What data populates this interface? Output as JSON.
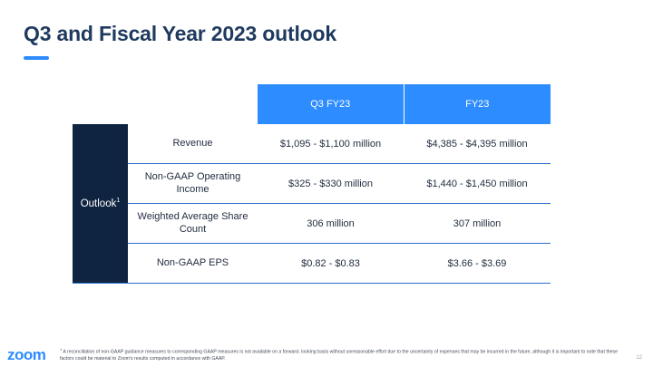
{
  "title": "Q3 and Fiscal Year 2023 outlook",
  "table": {
    "columns": [
      "Q3 FY23",
      "FY23"
    ],
    "side_label": "Outlook",
    "side_label_sup": "1",
    "rows": [
      {
        "metric": "Revenue",
        "q3": "$1,095 - $1,100 million",
        "fy": "$4,385 - $4,395 million"
      },
      {
        "metric": "Non-GAAP Operating Income",
        "q3": "$325 - $330 million",
        "fy": "$1,440 - $1,450 million"
      },
      {
        "metric": "Weighted Average Share Count",
        "q3": "306 million",
        "fy": "307 million"
      },
      {
        "metric": "Non-GAAP EPS",
        "q3": "$0.82 - $0.83",
        "fy": "$3.66 - $3.69"
      }
    ]
  },
  "footnote": {
    "sup": "1",
    "text": "A reconciliation of non-GAAP guidance measures to corresponding GAAP measures is not available on a forward- looking basis without unreasonable effort due to the uncertainty of expenses that may be incurred in the future, although it is important to note that these factors could be material to Zoom's results computed in accordance with GAAP."
  },
  "logo": "zoom",
  "page_number": "12",
  "colors": {
    "accent": "#2d8cff",
    "navy": "#0e2440",
    "title": "#1f3a5f"
  }
}
